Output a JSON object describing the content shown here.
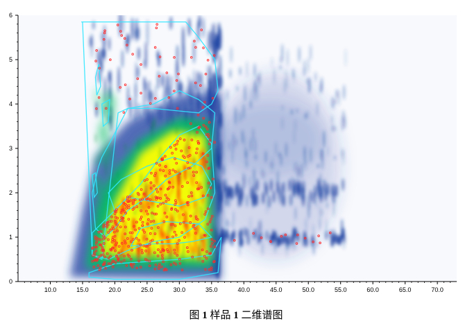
{
  "chart_data": {
    "type": "heatmap",
    "title": "",
    "xlabel": "",
    "ylabel": "",
    "xlim": [
      5,
      73
    ],
    "ylim": [
      0,
      6
    ],
    "x_ticks": [
      10,
      15,
      20,
      25,
      30,
      35,
      40,
      45,
      50,
      55,
      60,
      65,
      70
    ],
    "x_tick_labels": [
      "10.0",
      "15.0",
      "20.0",
      "25.0",
      "30.0",
      "35.0",
      "40.0",
      "45.0",
      "50.0",
      "55.0",
      "60.0",
      "65.0",
      "70.0"
    ],
    "y_ticks": [
      0,
      1,
      2,
      3,
      4,
      5,
      6
    ],
    "y_tick_labels": [
      "0",
      "1",
      "2",
      "3",
      "4",
      "5",
      "6"
    ],
    "colormap": [
      "#ffffff",
      "#1a3fa0",
      "#00c060",
      "#ffff00",
      "#ff0000"
    ],
    "grid": false,
    "legend": "none",
    "blob_regions": [
      {
        "name": "main-yellow-region",
        "x_range": [
          17,
          36
        ],
        "y_range": [
          0.3,
          3.8
        ],
        "intensity": "high"
      },
      {
        "name": "blue-right-cloud",
        "x_range": [
          36,
          56
        ],
        "y_range": [
          0.5,
          5
        ],
        "intensity": "low"
      },
      {
        "name": "blue-band-1",
        "x_range": [
          36,
          56
        ],
        "y_range": [
          0.8,
          1.2
        ],
        "intensity": "medium"
      },
      {
        "name": "blue-band-2",
        "x_range": [
          36,
          56
        ],
        "y_range": [
          1.8,
          2.2
        ],
        "intensity": "medium"
      },
      {
        "name": "upper-streaks",
        "x_range": [
          15,
          36
        ],
        "y_range": [
          3.5,
          5.9
        ],
        "intensity": "medium"
      }
    ],
    "peak_markers_color": "#ff2a2a",
    "polygon_outline_color": "#30e6ff"
  },
  "caption": {
    "fig": "图",
    "num": "1",
    "sample_label": "样品",
    "sample_num": "1",
    "rest": "二维谱图"
  }
}
